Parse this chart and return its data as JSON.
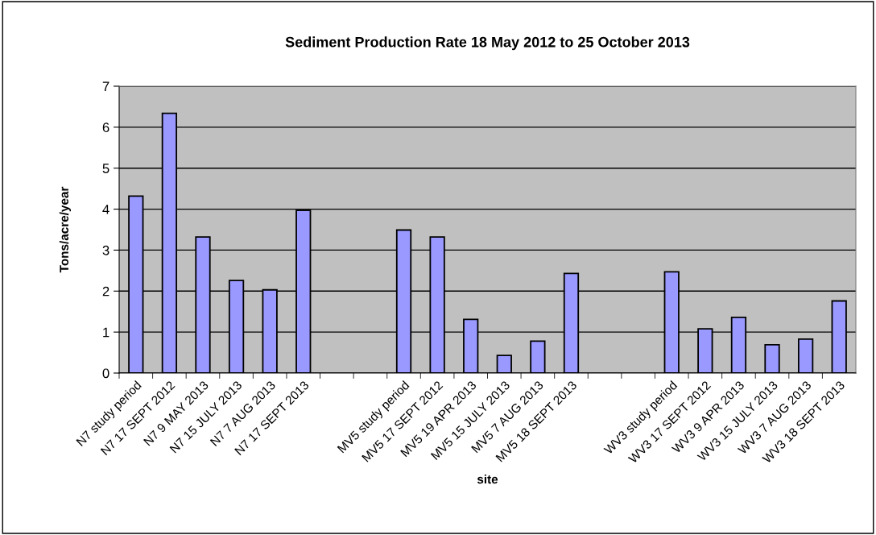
{
  "chart_data": {
    "type": "bar",
    "title": "Sediment Production Rate 18 May 2012 to 25 October 2013",
    "xlabel": "site",
    "ylabel": "Tons/acre/year",
    "categories": [
      "N7 study period",
      "N7 17 SEPT 2012",
      "N7 9 MAY 2013",
      "N7 15 JULY 2013",
      "N7 7 AUG 2013",
      "N7 17 SEPT 2013",
      null,
      null,
      "MV5 study period",
      "MV5 17 SEPT 2012",
      "MV5 19 APR 2013",
      "MV5 15 JULY 2013",
      "MV5 7 AUG 2013",
      "MV5 18 SEPT 2013",
      null,
      null,
      "WV3 study period",
      "WV3 17 SEPT 2012",
      "WV3 9 APR 2013",
      "WV3 15 JULY 2013",
      "WV3 7 AUG 2013",
      "WV3 18 SEPT 2013"
    ],
    "values": [
      4.32,
      6.34,
      3.32,
      2.26,
      2.03,
      3.97,
      null,
      null,
      3.49,
      3.32,
      1.31,
      0.43,
      0.78,
      2.43,
      null,
      null,
      2.47,
      1.08,
      1.36,
      0.69,
      0.83,
      1.76
    ],
    "color": "#9999ff",
    "ylim": [
      0,
      7
    ],
    "yticks": [
      0,
      1,
      2,
      3,
      4,
      5,
      6,
      7
    ],
    "grid": "y",
    "legend": false
  }
}
